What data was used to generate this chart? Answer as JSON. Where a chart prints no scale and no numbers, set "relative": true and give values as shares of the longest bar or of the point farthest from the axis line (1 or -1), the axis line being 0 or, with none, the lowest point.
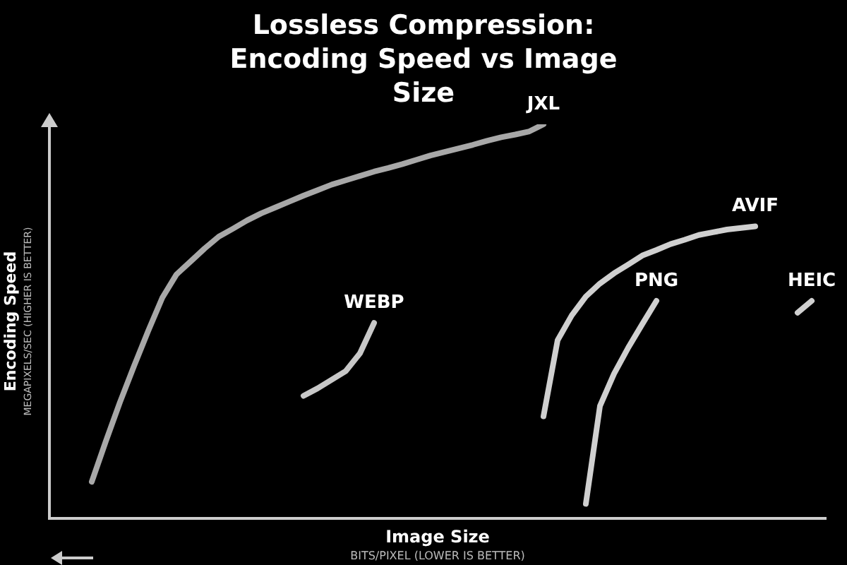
{
  "chart_data": {
    "type": "line",
    "title": "Lossless Compression: Encoding Speed vs Image Size",
    "xlabel": "Image Size",
    "ylabel": "Encoding Speed",
    "annotations": [
      "MEGAPIXELS/SEC (HIGHER IS BETTER)",
      "BITS/PIXEL (LOWER IS BETTER)"
    ],
    "relative": true,
    "legend": false,
    "marker": "none",
    "categories": [
      null,
      null,
      null,
      null,
      null,
      null,
      null,
      null,
      null,
      null,
      null,
      null,
      null,
      null,
      null,
      null,
      null,
      null,
      null,
      null,
      null,
      null,
      null,
      null,
      null,
      null,
      null,
      null,
      null,
      null,
      null,
      null,
      null,
      null,
      null,
      null,
      null,
      null,
      null,
      null,
      null,
      null,
      null,
      null,
      null,
      null,
      null,
      null,
      null,
      null,
      null,
      null,
      null,
      null,
      null,
      null
    ],
    "series": [
      {
        "name": "JXL",
        "color": "#a8a8a8",
        "values": [
          null,
          null,
          null,
          0.093,
          0.196,
          0.295,
          0.387,
          0.476,
          0.56,
          0.619,
          0.652,
          0.685,
          0.715,
          0.735,
          0.756,
          0.774,
          0.789,
          0.804,
          0.819,
          0.833,
          0.847,
          0.858,
          0.869,
          0.88,
          0.889,
          0.899,
          0.91,
          0.921,
          0.93,
          0.939,
          0.948,
          0.958,
          0.967,
          0.974,
          0.982,
          1.0,
          null,
          null,
          null,
          null,
          null,
          null,
          null,
          null,
          null,
          null,
          null,
          null,
          null,
          null,
          null,
          null,
          null,
          null,
          null,
          null
        ]
      },
      {
        "name": "WEBP",
        "color": "#c8c8c8",
        "values": [
          null,
          null,
          null,
          null,
          null,
          null,
          null,
          null,
          null,
          null,
          null,
          null,
          null,
          null,
          null,
          null,
          null,
          null,
          0.311,
          0.33,
          0.352,
          0.374,
          0.419,
          0.496,
          null,
          null,
          null,
          null,
          null,
          null,
          null,
          null,
          null,
          null,
          null,
          null,
          null,
          null,
          null,
          null,
          null,
          null,
          null,
          null,
          null,
          null,
          null,
          null,
          null,
          null,
          null,
          null,
          null,
          null,
          null,
          null
        ]
      },
      {
        "name": "AVIF",
        "color": "#d0d0d0",
        "values": [
          null,
          null,
          null,
          null,
          null,
          null,
          null,
          null,
          null,
          null,
          null,
          null,
          null,
          null,
          null,
          null,
          null,
          null,
          null,
          null,
          null,
          null,
          null,
          null,
          null,
          null,
          null,
          null,
          null,
          null,
          null,
          null,
          null,
          null,
          null,
          0.259,
          0.452,
          0.515,
          0.563,
          0.596,
          0.622,
          0.644,
          0.667,
          0.681,
          0.696,
          0.707,
          0.719,
          0.726,
          0.733,
          0.737,
          0.741,
          null,
          null,
          null,
          null,
          null
        ]
      },
      {
        "name": "PNG",
        "color": "#d0d0d0",
        "values": [
          null,
          null,
          null,
          null,
          null,
          null,
          null,
          null,
          null,
          null,
          null,
          null,
          null,
          null,
          null,
          null,
          null,
          null,
          null,
          null,
          null,
          null,
          null,
          null,
          null,
          null,
          null,
          null,
          null,
          null,
          null,
          null,
          null,
          null,
          null,
          null,
          null,
          null,
          0.037,
          0.285,
          0.367,
          0.433,
          0.493,
          0.552,
          null,
          null,
          null,
          null,
          null,
          null,
          null,
          null,
          null,
          null,
          null,
          null
        ]
      },
      {
        "name": "HEIC",
        "color": "#d0d0d0",
        "values": [
          null,
          null,
          null,
          null,
          null,
          null,
          null,
          null,
          null,
          null,
          null,
          null,
          null,
          null,
          null,
          null,
          null,
          null,
          null,
          null,
          null,
          null,
          null,
          null,
          null,
          null,
          null,
          null,
          null,
          null,
          null,
          null,
          null,
          null,
          null,
          null,
          null,
          null,
          null,
          null,
          null,
          null,
          null,
          null,
          null,
          null,
          null,
          null,
          null,
          null,
          null,
          null,
          null,
          0.522,
          0.552,
          null
        ]
      }
    ]
  }
}
